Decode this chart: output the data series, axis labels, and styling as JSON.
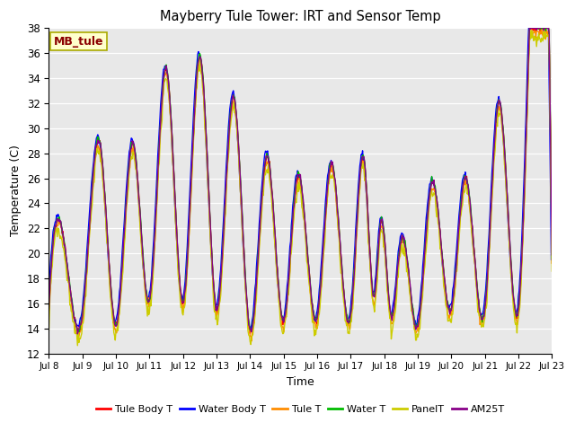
{
  "title": "Mayberry Tule Tower: IRT and Sensor Temp",
  "xlabel": "Time",
  "ylabel": "Temperature (C)",
  "ylim": [
    12,
    38
  ],
  "yticks": [
    12,
    14,
    16,
    18,
    20,
    22,
    24,
    26,
    28,
    30,
    32,
    34,
    36,
    38
  ],
  "xtick_labels": [
    "Jul 8",
    "Jul 9",
    "Jul 10",
    "Jul 11",
    "Jul 12",
    "Jul 13",
    "Jul 14",
    "Jul 15",
    "Jul 16",
    "Jul 17",
    "Jul 18",
    "Jul 19",
    "Jul 20",
    "Jul 21",
    "Jul 22",
    "Jul 23"
  ],
  "annotation_text": "MB_tule",
  "annotation_color": "#8B0000",
  "annotation_bg": "#FFFFCC",
  "annotation_edge": "#AAAA00",
  "bg_color": "#E8E8E8",
  "lines": {
    "Tule Body T": {
      "color": "#FF0000",
      "lw": 1.0
    },
    "Water Body T": {
      "color": "#0000FF",
      "lw": 1.0
    },
    "Tule T": {
      "color": "#FF8C00",
      "lw": 1.0
    },
    "Water T": {
      "color": "#00BB00",
      "lw": 1.0
    },
    "PanelT": {
      "color": "#CCCC00",
      "lw": 1.0
    },
    "AM25T": {
      "color": "#880088",
      "lw": 1.0
    }
  },
  "legend_order": [
    "Tule Body T",
    "Water Body T",
    "Tule T",
    "Water T",
    "PanelT",
    "AM25T"
  ],
  "peaks": [
    {
      "day": 0.5,
      "val": 20.0
    },
    {
      "day": 1.5,
      "val": 29.0
    },
    {
      "day": 2.5,
      "val": 28.8
    },
    {
      "day": 3.5,
      "val": 34.8
    },
    {
      "day": 4.5,
      "val": 35.8
    },
    {
      "day": 5.5,
      "val": 32.5
    },
    {
      "day": 6.5,
      "val": 27.8
    },
    {
      "day": 7.4,
      "val": 26.0
    },
    {
      "day": 8.4,
      "val": 27.0
    },
    {
      "day": 9.4,
      "val": 27.5
    },
    {
      "day": 9.9,
      "val": 22.5
    },
    {
      "day": 10.5,
      "val": 21.0
    },
    {
      "day": 11.4,
      "val": 25.5
    },
    {
      "day": 12.4,
      "val": 26.0
    },
    {
      "day": 13.4,
      "val": 32.0
    },
    {
      "day": 14.3,
      "val": 35.5
    }
  ],
  "troughs": [
    {
      "day": 0.0,
      "val": 15.5
    },
    {
      "day": 1.0,
      "val": 15.0
    },
    {
      "day": 2.0,
      "val": 14.2
    },
    {
      "day": 3.0,
      "val": 16.2
    },
    {
      "day": 4.0,
      "val": 16.0
    },
    {
      "day": 5.0,
      "val": 15.5
    },
    {
      "day": 6.0,
      "val": 13.8
    },
    {
      "day": 7.0,
      "val": 14.5
    },
    {
      "day": 8.0,
      "val": 14.8
    },
    {
      "day": 9.0,
      "val": 15.0
    },
    {
      "day": 9.7,
      "val": 16.5
    },
    {
      "day": 10.2,
      "val": 15.0
    },
    {
      "day": 11.0,
      "val": 14.2
    },
    {
      "day": 12.0,
      "val": 15.5
    },
    {
      "day": 13.0,
      "val": 15.5
    },
    {
      "day": 14.0,
      "val": 15.5
    },
    {
      "day": 15.0,
      "val": 19.5
    }
  ]
}
